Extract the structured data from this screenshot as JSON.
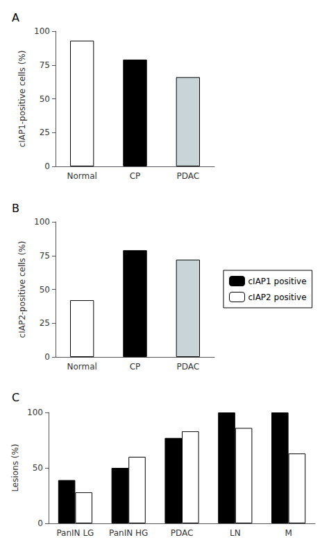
{
  "chart_data": [
    {
      "type": "bar",
      "title": "A",
      "categories": [
        "Normal",
        "CP",
        "PDAC"
      ],
      "values": [
        93,
        79,
        66
      ],
      "colors": [
        "#ffffff",
        "#000000",
        "#c8d4d8"
      ],
      "ylabel": "cIAP1-positive cells (%)",
      "ylim": [
        0,
        100
      ],
      "yticks": [
        0,
        25,
        50,
        75,
        100
      ],
      "grid": false
    },
    {
      "type": "bar",
      "title": "B",
      "categories": [
        "Normal",
        "CP",
        "PDAC"
      ],
      "values": [
        42,
        79,
        72
      ],
      "colors": [
        "#ffffff",
        "#000000",
        "#c8d4d8"
      ],
      "ylabel": "cIAP2-positive cells (%)",
      "ylim": [
        0,
        100
      ],
      "yticks": [
        0,
        25,
        50,
        75,
        100
      ],
      "grid": false
    },
    {
      "type": "bar",
      "title": "C",
      "categories": [
        "PanIN LG",
        "PanIN HG",
        "PDAC",
        "LN",
        "M"
      ],
      "series": [
        {
          "name": "cIAP1 positive",
          "color": "#000000",
          "values": [
            39,
            50,
            77,
            100,
            100
          ]
        },
        {
          "name": "cIAP2 positive",
          "color": "#ffffff",
          "values": [
            28,
            60,
            83,
            86,
            63
          ]
        }
      ],
      "ylabel": "Lesions (%)",
      "ylim": [
        0,
        100
      ],
      "yticks": [
        0,
        50,
        100
      ],
      "grid": false,
      "legend": "right"
    }
  ]
}
